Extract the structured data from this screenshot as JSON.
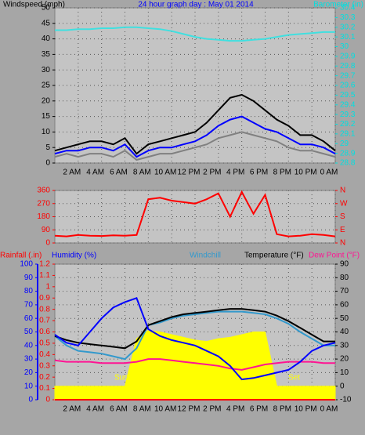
{
  "chart_data": [
    {
      "type": "line",
      "title": "24 hour graph day : May 01 2014",
      "ylabel": "Windspeed (mph)",
      "y2label": "Barometer (in)",
      "x": [
        0,
        1,
        2,
        3,
        4,
        5,
        6,
        7,
        8,
        9,
        10,
        11,
        12,
        13,
        14,
        15,
        16,
        17,
        18,
        19,
        20,
        21,
        22,
        23,
        24
      ],
      "xlim": [
        0,
        24
      ],
      "xticks": [
        {
          "value": 2,
          "label": "2 AM"
        },
        {
          "value": 4,
          "label": "4 AM"
        },
        {
          "value": 6,
          "label": "6 AM"
        },
        {
          "value": 8,
          "label": "8 AM"
        },
        {
          "value": 10,
          "label": "10 AM"
        },
        {
          "value": 12,
          "label": "12 PM"
        },
        {
          "value": 14,
          "label": "2 PM"
        },
        {
          "value": 16,
          "label": "4 PM"
        },
        {
          "value": 18,
          "label": "6 PM"
        },
        {
          "value": 20,
          "label": "8 PM"
        },
        {
          "value": 22,
          "label": "10 PM"
        },
        {
          "value": 24,
          "label": "0 AM"
        }
      ],
      "ylim": [
        0,
        50
      ],
      "yticks": [
        0,
        5,
        10,
        15,
        20,
        25,
        30,
        35,
        40,
        45,
        50
      ],
      "ycolor": "#000000",
      "y2lim": [
        28.8,
        30.4
      ],
      "y2ticks": [
        28.8,
        28.9,
        29,
        29.1,
        29.2,
        29.3,
        29.4,
        29.5,
        29.6,
        29.7,
        29.8,
        29.9,
        30,
        30.1,
        30.2,
        30.3,
        30.4
      ],
      "y2color": "#00e0e0",
      "grid": true,
      "series": [
        {
          "color": "#000000",
          "values": [
            4,
            5,
            6,
            7,
            7,
            6,
            8,
            3,
            6,
            7,
            8,
            9,
            10,
            13,
            17,
            21,
            22,
            20,
            17,
            14,
            12,
            9,
            9,
            7,
            4
          ]
        },
        {
          "color": "#808080",
          "values": [
            2,
            3,
            2,
            3,
            3,
            2,
            4,
            1,
            2,
            3,
            3,
            4,
            5,
            6,
            8,
            9,
            10,
            9,
            8,
            7,
            5,
            4,
            4,
            3,
            2
          ]
        },
        {
          "color": "#0000ff",
          "values": [
            3,
            4,
            4,
            5,
            5,
            4,
            6,
            2,
            4,
            5,
            5,
            6,
            7,
            9,
            12,
            14,
            15,
            13,
            11,
            10,
            8,
            6,
            6,
            5,
            3
          ]
        },
        {
          "color": "#40e0e0",
          "axis": "y2",
          "values": [
            30.17,
            30.17,
            30.18,
            30.18,
            30.19,
            30.19,
            30.2,
            30.2,
            30.19,
            30.18,
            30.16,
            30.13,
            30.1,
            30.08,
            30.07,
            30.06,
            30.06,
            30.07,
            30.08,
            30.1,
            30.12,
            30.13,
            30.14,
            30.15,
            30.15
          ]
        }
      ]
    },
    {
      "type": "line",
      "x": [
        0,
        1,
        2,
        3,
        4,
        5,
        6,
        7,
        8,
        9,
        10,
        11,
        12,
        13,
        14,
        15,
        16,
        17,
        18,
        19,
        20,
        21,
        22,
        23,
        24
      ],
      "xlim": [
        0,
        24
      ],
      "xticks": [
        2,
        4,
        6,
        8,
        10,
        12,
        14,
        16,
        18,
        20,
        22,
        24
      ],
      "ylim": [
        0,
        360
      ],
      "yticks": [
        0,
        90,
        180,
        270,
        360
      ],
      "ycolor": "#ff0000",
      "y2lim": [
        0,
        360
      ],
      "y2ticks": [
        {
          "value": 0,
          "label": "N"
        },
        {
          "value": 90,
          "label": "E"
        },
        {
          "value": 180,
          "label": "S"
        },
        {
          "value": 270,
          "label": "W"
        },
        {
          "value": 360,
          "label": "N"
        }
      ],
      "y2color": "#ff0000",
      "grid": true,
      "series": [
        {
          "color": "#ff0000",
          "values": [
            50,
            45,
            55,
            50,
            48,
            52,
            50,
            55,
            300,
            310,
            290,
            280,
            270,
            300,
            340,
            180,
            350,
            200,
            330,
            60,
            45,
            50,
            60,
            55,
            45
          ]
        }
      ]
    },
    {
      "type": "line",
      "ylabel": "Humidity (%)",
      "y2label": "Temperature (°F)",
      "y3label": "Rainfall (.in)",
      "annotations": [
        "Sun",
        "Set"
      ],
      "x": [
        0,
        1,
        2,
        3,
        4,
        5,
        6,
        7,
        8,
        9,
        10,
        11,
        12,
        13,
        14,
        15,
        16,
        17,
        18,
        19,
        20,
        21,
        22,
        23,
        24
      ],
      "xlim": [
        0,
        24
      ],
      "xticks": [
        {
          "value": 2,
          "label": "2 AM"
        },
        {
          "value": 4,
          "label": "4 AM"
        },
        {
          "value": 6,
          "label": "6 AM"
        },
        {
          "value": 8,
          "label": "8 AM"
        },
        {
          "value": 10,
          "label": "10 AM"
        },
        {
          "value": 12,
          "label": "12 PM"
        },
        {
          "value": 14,
          "label": "2 PM"
        },
        {
          "value": 16,
          "label": "4 PM"
        },
        {
          "value": 18,
          "label": "6 PM"
        },
        {
          "value": 20,
          "label": "8 PM"
        },
        {
          "value": 22,
          "label": "10 PM"
        },
        {
          "value": 24,
          "label": "0 AM"
        }
      ],
      "ylim": [
        0,
        100
      ],
      "yticks": [
        0,
        10,
        20,
        30,
        40,
        50,
        60,
        70,
        80,
        90,
        100
      ],
      "ycolor": "#0000ff",
      "y2lim": [
        -10,
        90
      ],
      "y2ticks": [
        -10,
        0,
        10,
        20,
        30,
        40,
        50,
        60,
        70,
        80,
        90
      ],
      "y2color": "#000000",
      "y3lim": [
        0,
        1.2
      ],
      "y3ticks": [
        0,
        0.1,
        0.2,
        0.3,
        0.4,
        0.5,
        0.6,
        0.7,
        0.8,
        0.9,
        1,
        1.1,
        1.2
      ],
      "y3color": "#ff0000",
      "grid": true,
      "series": [
        {
          "color": "#ffff00",
          "axis": "y2",
          "fill": true,
          "values": [
            0,
            0,
            0,
            0,
            0,
            0,
            0,
            35,
            41,
            40,
            38,
            36,
            34,
            33,
            35,
            36,
            38,
            40,
            40,
            0,
            0,
            0,
            0,
            0,
            0
          ]
        },
        {
          "color": "#ff0000",
          "axis": "y3",
          "values": [
            0,
            0,
            0,
            0,
            0,
            0,
            0,
            0,
            0,
            0,
            0,
            0,
            0,
            0,
            0,
            0,
            0,
            0,
            0,
            0,
            0,
            0,
            0,
            0,
            0
          ]
        },
        {
          "name": "Windchill",
          "color": "#3399cc",
          "axis": "y2",
          "values": [
            37,
            30,
            26,
            25,
            24,
            22,
            20,
            28,
            45,
            47,
            50,
            52,
            53,
            54,
            55,
            55,
            55,
            54,
            53,
            50,
            46,
            40,
            35,
            30,
            30
          ]
        },
        {
          "name": "Dew Point (°F)",
          "color": "#ff1493",
          "axis": "y2",
          "values": [
            19,
            18,
            18,
            18,
            17,
            17,
            17,
            18,
            20,
            20,
            19,
            18,
            17,
            16,
            15,
            13,
            12,
            14,
            16,
            17,
            18,
            18,
            18,
            17,
            17
          ]
        },
        {
          "color": "#000000",
          "axis": "y2",
          "values": [
            37,
            34,
            32,
            31,
            30,
            29,
            28,
            33,
            45,
            48,
            51,
            53,
            54,
            55,
            56,
            57,
            57,
            56,
            55,
            52,
            48,
            43,
            38,
            33,
            33
          ]
        },
        {
          "color": "#0000ff",
          "values": [
            48,
            42,
            40,
            50,
            60,
            68,
            72,
            75,
            52,
            47,
            44,
            42,
            40,
            36,
            32,
            25,
            15,
            16,
            18,
            20,
            22,
            28,
            36,
            40,
            42
          ]
        }
      ]
    }
  ]
}
